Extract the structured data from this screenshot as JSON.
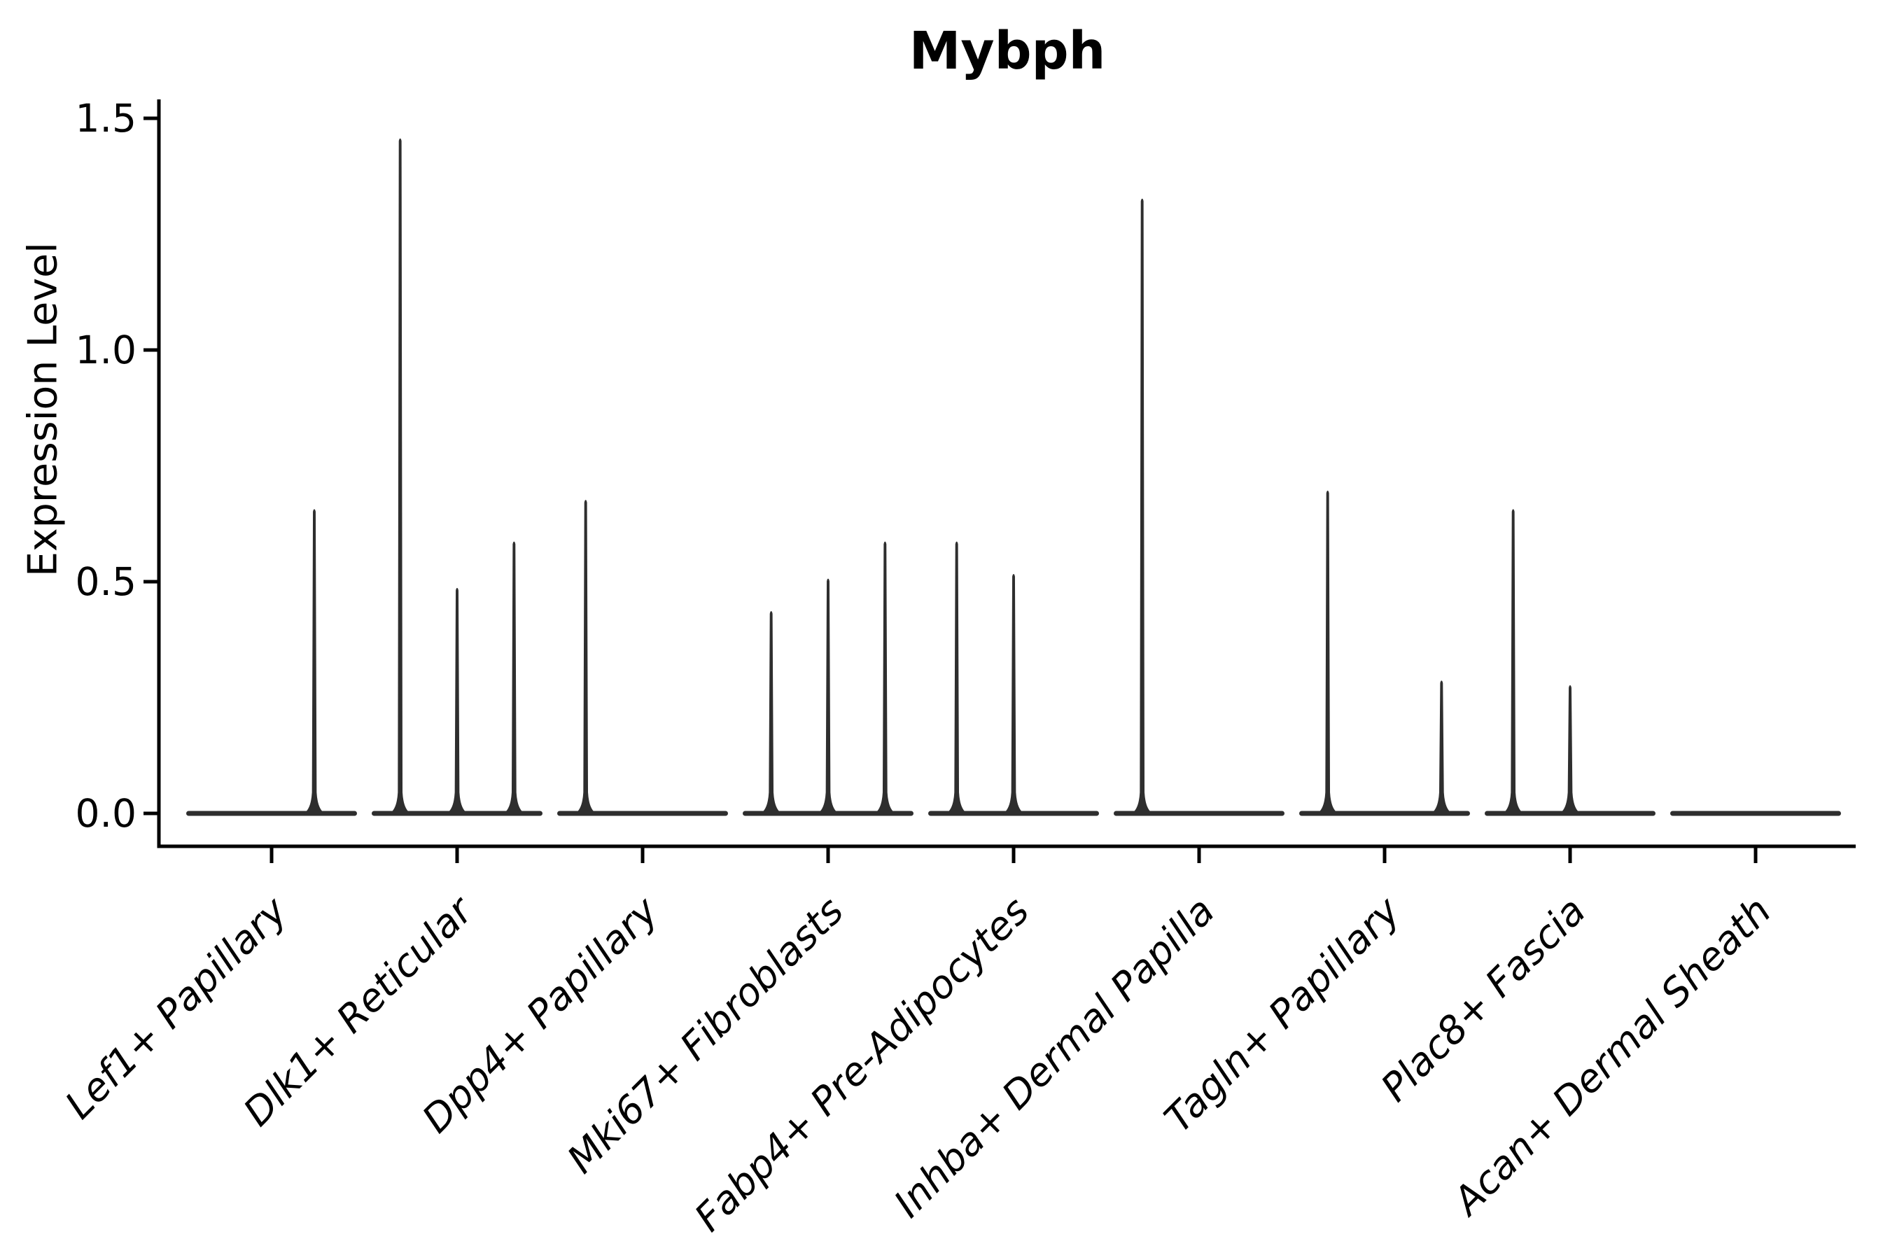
{
  "figure": {
    "title": "Mybph",
    "y_axis_label": "Expression Level",
    "background_color": "#ffffff",
    "axis_color": "#000000",
    "violin_color": "#2e2e2e",
    "text_color": "#000000"
  },
  "chart_data": {
    "type": "violin",
    "title": "Mybph",
    "xlabel": "",
    "ylabel": "Expression Level",
    "ylim": [
      -0.07,
      1.54
    ],
    "yticks": [
      0.0,
      0.5,
      1.0,
      1.5
    ],
    "ytick_labels": [
      "0.0",
      "0.5",
      "1.0",
      "1.5"
    ],
    "grid": false,
    "legend": false,
    "categories": [
      "Lef1+ Papillary",
      "Dlk1+ Reticular",
      "Dpp4+ Papillary",
      "Mki67+ Fibroblasts",
      "Fabp4+ Pre-Adipocytes",
      "Inhba+ Dermal Papilla",
      "Tagln+ Papillary",
      "Plac8+ Fascia",
      "Acan+ Dermal Sheath"
    ],
    "series": [
      {
        "category": "Lef1+ Papillary",
        "violin_maxima": [
          0,
          0.66
        ]
      },
      {
        "category": "Dlk1+ Reticular",
        "violin_maxima": [
          1.46,
          0.49,
          0.59
        ]
      },
      {
        "category": "Dpp4+ Papillary",
        "violin_maxima": [
          0.68,
          0,
          0
        ]
      },
      {
        "category": "Mki67+ Fibroblasts",
        "violin_maxima": [
          0.44,
          0.51,
          0.59
        ]
      },
      {
        "category": "Fabp4+ Pre-Adipocytes",
        "violin_maxima": [
          0.59,
          0.52,
          0
        ]
      },
      {
        "category": "Inhba+ Dermal Papilla",
        "violin_maxima": [
          1.33,
          0,
          0
        ]
      },
      {
        "category": "Tagln+ Papillary",
        "violin_maxima": [
          0.7,
          0,
          0.29
        ]
      },
      {
        "category": "Plac8+ Fascia",
        "violin_maxima": [
          0.66,
          0.28,
          0
        ]
      },
      {
        "category": "Acan+ Dermal Sheath",
        "violin_maxima": [
          0,
          0,
          0
        ]
      }
    ]
  }
}
